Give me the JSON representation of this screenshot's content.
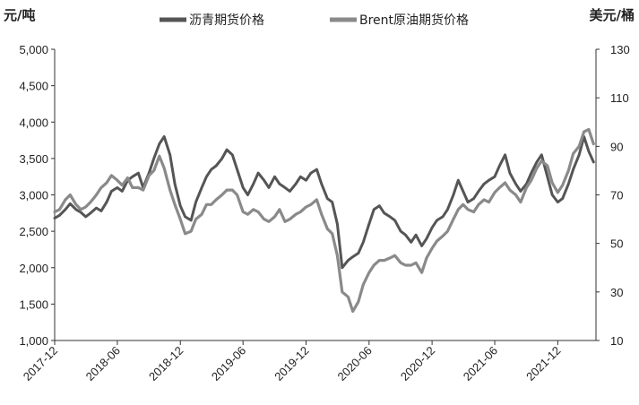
{
  "chart_data": {
    "type": "line",
    "y_left_unit": "元/吨",
    "y_right_unit": "美元/桶",
    "y_left_ticks": [
      "5,000",
      "4,500",
      "4,000",
      "3,500",
      "3,000",
      "2,500",
      "2,000",
      "1,500",
      "1,000"
    ],
    "y_right_ticks": [
      "130",
      "110",
      "90",
      "70",
      "50",
      "30",
      "10"
    ],
    "y_left_lim": [
      1000,
      5000
    ],
    "y_right_lim": [
      10,
      130
    ],
    "x_tick_labels": [
      "2017-12",
      "2018-06",
      "2018-12",
      "2019-06",
      "2019-12",
      "2020-06",
      "2020-12",
      "2021-06",
      "2021-12"
    ],
    "x_range": [
      "2017-12",
      "2022-03"
    ],
    "legend_position": "top",
    "grid": false,
    "series": [
      {
        "name": "沥青期货价格",
        "axis": "left",
        "color": "#555555",
        "points": [
          [
            "2017-12-01",
            2680
          ],
          [
            "2017-12-15",
            2720
          ],
          [
            "2018-01-01",
            2800
          ],
          [
            "2018-01-15",
            2880
          ],
          [
            "2018-02-01",
            2800
          ],
          [
            "2018-02-15",
            2760
          ],
          [
            "2018-03-01",
            2700
          ],
          [
            "2018-03-15",
            2750
          ],
          [
            "2018-04-01",
            2820
          ],
          [
            "2018-04-15",
            2780
          ],
          [
            "2018-05-01",
            2900
          ],
          [
            "2018-05-15",
            3050
          ],
          [
            "2018-06-01",
            3100
          ],
          [
            "2018-06-15",
            3050
          ],
          [
            "2018-07-01",
            3200
          ],
          [
            "2018-07-15",
            3250
          ],
          [
            "2018-08-01",
            3300
          ],
          [
            "2018-08-15",
            3100
          ],
          [
            "2018-09-01",
            3300
          ],
          [
            "2018-09-15",
            3500
          ],
          [
            "2018-10-01",
            3700
          ],
          [
            "2018-10-15",
            3800
          ],
          [
            "2018-11-01",
            3550
          ],
          [
            "2018-11-15",
            3150
          ],
          [
            "2018-12-01",
            2850
          ],
          [
            "2018-12-15",
            2700
          ],
          [
            "2019-01-01",
            2650
          ],
          [
            "2019-01-15",
            2900
          ],
          [
            "2019-02-01",
            3100
          ],
          [
            "2019-02-15",
            3250
          ],
          [
            "2019-03-01",
            3350
          ],
          [
            "2019-03-15",
            3400
          ],
          [
            "2019-04-01",
            3500
          ],
          [
            "2019-04-15",
            3620
          ],
          [
            "2019-05-01",
            3550
          ],
          [
            "2019-05-15",
            3350
          ],
          [
            "2019-06-01",
            3100
          ],
          [
            "2019-06-15",
            3000
          ],
          [
            "2019-07-01",
            3150
          ],
          [
            "2019-07-15",
            3300
          ],
          [
            "2019-08-01",
            3200
          ],
          [
            "2019-08-15",
            3100
          ],
          [
            "2019-09-01",
            3250
          ],
          [
            "2019-09-15",
            3150
          ],
          [
            "2019-10-01",
            3100
          ],
          [
            "2019-10-15",
            3050
          ],
          [
            "2019-11-01",
            3150
          ],
          [
            "2019-11-15",
            3250
          ],
          [
            "2019-12-01",
            3200
          ],
          [
            "2019-12-15",
            3300
          ],
          [
            "2020-01-01",
            3350
          ],
          [
            "2020-01-15",
            3150
          ],
          [
            "2020-02-01",
            2950
          ],
          [
            "2020-02-15",
            2900
          ],
          [
            "2020-03-01",
            2600
          ],
          [
            "2020-03-15",
            2000
          ],
          [
            "2020-04-01",
            2100
          ],
          [
            "2020-04-15",
            2150
          ],
          [
            "2020-05-01",
            2200
          ],
          [
            "2020-05-15",
            2350
          ],
          [
            "2020-06-01",
            2600
          ],
          [
            "2020-06-15",
            2800
          ],
          [
            "2020-07-01",
            2850
          ],
          [
            "2020-07-15",
            2750
          ],
          [
            "2020-08-01",
            2700
          ],
          [
            "2020-08-15",
            2650
          ],
          [
            "2020-09-01",
            2500
          ],
          [
            "2020-09-15",
            2450
          ],
          [
            "2020-10-01",
            2350
          ],
          [
            "2020-10-15",
            2450
          ],
          [
            "2020-11-01",
            2300
          ],
          [
            "2020-11-15",
            2400
          ],
          [
            "2020-12-01",
            2550
          ],
          [
            "2020-12-15",
            2650
          ],
          [
            "2021-01-01",
            2700
          ],
          [
            "2021-01-15",
            2800
          ],
          [
            "2021-02-01",
            3000
          ],
          [
            "2021-02-15",
            3200
          ],
          [
            "2021-03-01",
            3050
          ],
          [
            "2021-03-15",
            2900
          ],
          [
            "2021-04-01",
            2950
          ],
          [
            "2021-04-15",
            3050
          ],
          [
            "2021-05-01",
            3150
          ],
          [
            "2021-05-15",
            3200
          ],
          [
            "2021-06-01",
            3250
          ],
          [
            "2021-06-15",
            3400
          ],
          [
            "2021-07-01",
            3550
          ],
          [
            "2021-07-15",
            3300
          ],
          [
            "2021-08-01",
            3150
          ],
          [
            "2021-08-15",
            3050
          ],
          [
            "2021-09-01",
            3150
          ],
          [
            "2021-09-15",
            3300
          ],
          [
            "2021-10-01",
            3450
          ],
          [
            "2021-10-15",
            3550
          ],
          [
            "2021-11-01",
            3250
          ],
          [
            "2021-11-15",
            3000
          ],
          [
            "2021-12-01",
            2900
          ],
          [
            "2021-12-15",
            2950
          ],
          [
            "2022-01-01",
            3150
          ],
          [
            "2022-01-15",
            3350
          ],
          [
            "2022-02-01",
            3550
          ],
          [
            "2022-02-15",
            3800
          ],
          [
            "2022-03-01",
            3600
          ],
          [
            "2022-03-15",
            3450
          ]
        ]
      },
      {
        "name": "Brent原油期货价格",
        "axis": "right",
        "color": "#8a8a8a",
        "points": [
          [
            "2017-12-01",
            63
          ],
          [
            "2017-12-15",
            64
          ],
          [
            "2018-01-01",
            68
          ],
          [
            "2018-01-15",
            70
          ],
          [
            "2018-02-01",
            66
          ],
          [
            "2018-02-15",
            64
          ],
          [
            "2018-03-01",
            65
          ],
          [
            "2018-03-15",
            67
          ],
          [
            "2018-04-01",
            70
          ],
          [
            "2018-04-15",
            73
          ],
          [
            "2018-05-01",
            75
          ],
          [
            "2018-05-15",
            78
          ],
          [
            "2018-06-01",
            76
          ],
          [
            "2018-06-15",
            74
          ],
          [
            "2018-07-01",
            77
          ],
          [
            "2018-07-15",
            73
          ],
          [
            "2018-08-01",
            73
          ],
          [
            "2018-08-15",
            72
          ],
          [
            "2018-09-01",
            78
          ],
          [
            "2018-09-15",
            80
          ],
          [
            "2018-10-01",
            86
          ],
          [
            "2018-10-15",
            81
          ],
          [
            "2018-11-01",
            72
          ],
          [
            "2018-11-15",
            66
          ],
          [
            "2018-12-01",
            60
          ],
          [
            "2018-12-15",
            54
          ],
          [
            "2019-01-01",
            55
          ],
          [
            "2019-01-15",
            60
          ],
          [
            "2019-02-01",
            62
          ],
          [
            "2019-02-15",
            66
          ],
          [
            "2019-03-01",
            66
          ],
          [
            "2019-03-15",
            68
          ],
          [
            "2019-04-01",
            70
          ],
          [
            "2019-04-15",
            72
          ],
          [
            "2019-05-01",
            72
          ],
          [
            "2019-05-15",
            70
          ],
          [
            "2019-06-01",
            63
          ],
          [
            "2019-06-15",
            62
          ],
          [
            "2019-07-01",
            64
          ],
          [
            "2019-07-15",
            63
          ],
          [
            "2019-08-01",
            60
          ],
          [
            "2019-08-15",
            59
          ],
          [
            "2019-09-01",
            61
          ],
          [
            "2019-09-15",
            64
          ],
          [
            "2019-10-01",
            59
          ],
          [
            "2019-10-15",
            60
          ],
          [
            "2019-11-01",
            62
          ],
          [
            "2019-11-15",
            63
          ],
          [
            "2019-12-01",
            65
          ],
          [
            "2019-12-15",
            66
          ],
          [
            "2020-01-01",
            68
          ],
          [
            "2020-01-15",
            62
          ],
          [
            "2020-02-01",
            56
          ],
          [
            "2020-02-15",
            54
          ],
          [
            "2020-03-01",
            45
          ],
          [
            "2020-03-15",
            30
          ],
          [
            "2020-04-01",
            28
          ],
          [
            "2020-04-15",
            22
          ],
          [
            "2020-05-01",
            26
          ],
          [
            "2020-05-15",
            33
          ],
          [
            "2020-06-01",
            38
          ],
          [
            "2020-06-15",
            41
          ],
          [
            "2020-07-01",
            43
          ],
          [
            "2020-07-15",
            43
          ],
          [
            "2020-08-01",
            44
          ],
          [
            "2020-08-15",
            45
          ],
          [
            "2020-09-01",
            42
          ],
          [
            "2020-09-15",
            41
          ],
          [
            "2020-10-01",
            41
          ],
          [
            "2020-10-15",
            42
          ],
          [
            "2020-11-01",
            38
          ],
          [
            "2020-11-15",
            44
          ],
          [
            "2020-12-01",
            48
          ],
          [
            "2020-12-15",
            51
          ],
          [
            "2021-01-01",
            53
          ],
          [
            "2021-01-15",
            55
          ],
          [
            "2021-02-01",
            60
          ],
          [
            "2021-02-15",
            64
          ],
          [
            "2021-03-01",
            66
          ],
          [
            "2021-03-15",
            64
          ],
          [
            "2021-04-01",
            63
          ],
          [
            "2021-04-15",
            66
          ],
          [
            "2021-05-01",
            68
          ],
          [
            "2021-05-15",
            67
          ],
          [
            "2021-06-01",
            71
          ],
          [
            "2021-06-15",
            73
          ],
          [
            "2021-07-01",
            75
          ],
          [
            "2021-07-15",
            72
          ],
          [
            "2021-08-01",
            70
          ],
          [
            "2021-08-15",
            67
          ],
          [
            "2021-09-01",
            73
          ],
          [
            "2021-09-15",
            76
          ],
          [
            "2021-10-01",
            81
          ],
          [
            "2021-10-15",
            84
          ],
          [
            "2021-11-01",
            82
          ],
          [
            "2021-11-15",
            75
          ],
          [
            "2021-12-01",
            71
          ],
          [
            "2021-12-15",
            74
          ],
          [
            "2022-01-01",
            80
          ],
          [
            "2022-01-15",
            87
          ],
          [
            "2022-02-01",
            90
          ],
          [
            "2022-02-15",
            96
          ],
          [
            "2022-03-01",
            97
          ],
          [
            "2022-03-15",
            91
          ]
        ]
      }
    ]
  }
}
